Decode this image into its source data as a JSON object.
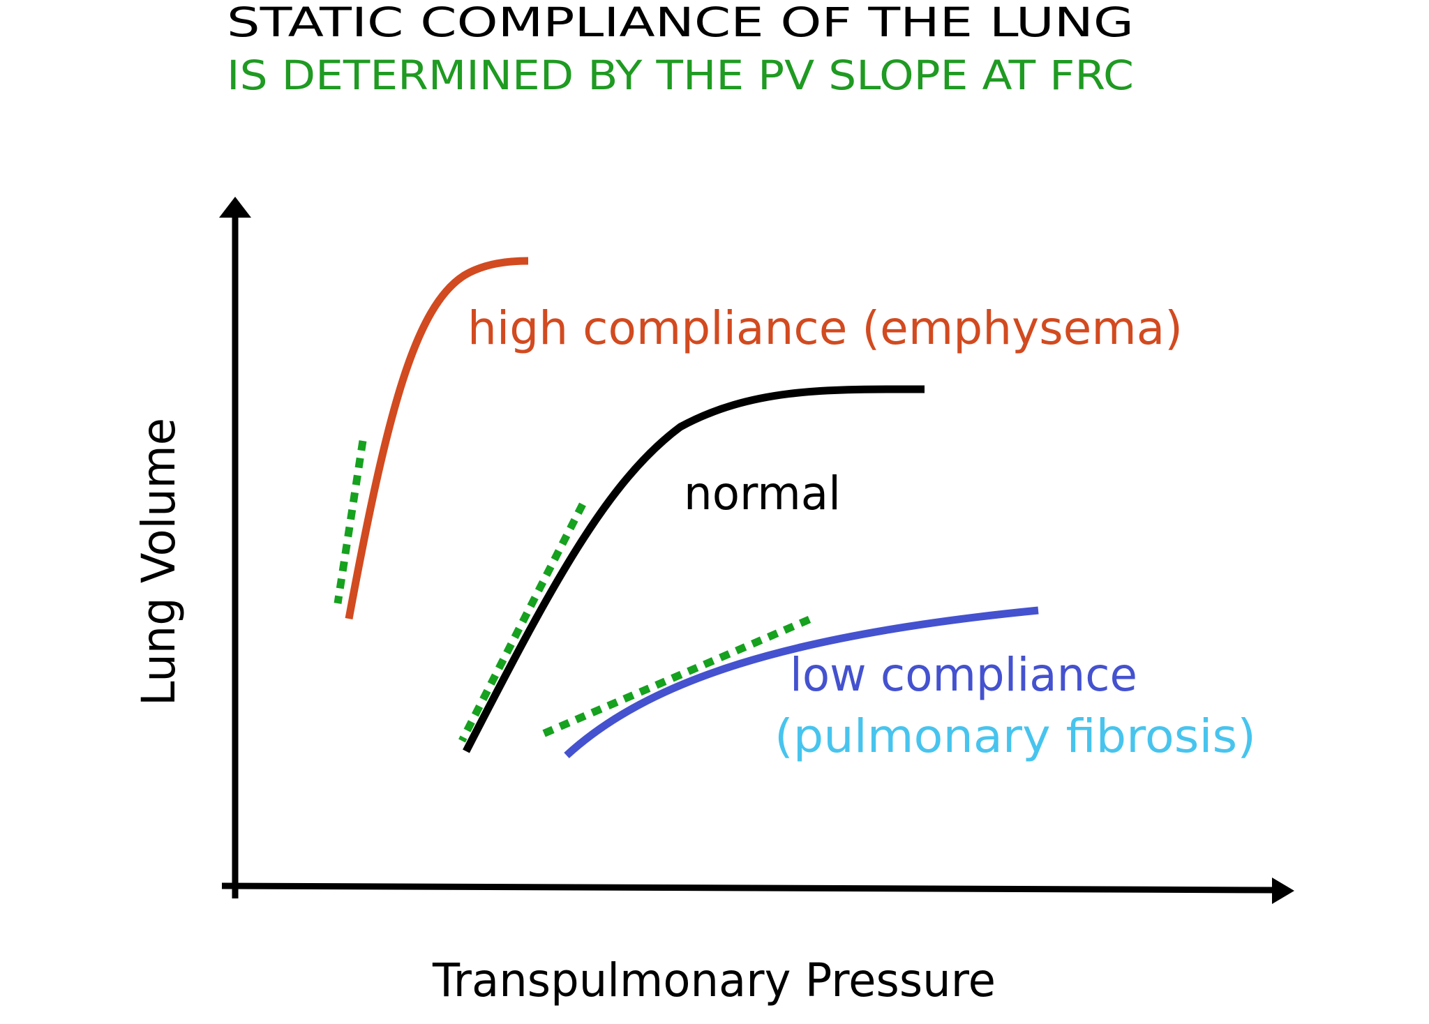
{
  "title": "STATIC COMPLIANCE OF THE LUNG",
  "subtitle": "IS DETERMINED BY THE PV SLOPE AT FRC",
  "xlabel": "Transpulmonary Pressure",
  "ylabel": "Lung Volume",
  "curves": {
    "high": {
      "label": "high compliance  (emphysema)",
      "color": "#d24a1f"
    },
    "normal": {
      "label": "normal",
      "color": "#000000"
    },
    "low": {
      "label": "low compliance",
      "sublabel": "(pulmonary fibrosis)",
      "color": "#4452cf",
      "sublabel_color": "#47c4ee"
    }
  },
  "colors": {
    "title": "#000000",
    "subtitle": "#1f9a22",
    "tangent": "#16a11f",
    "axis": "#000000"
  }
}
